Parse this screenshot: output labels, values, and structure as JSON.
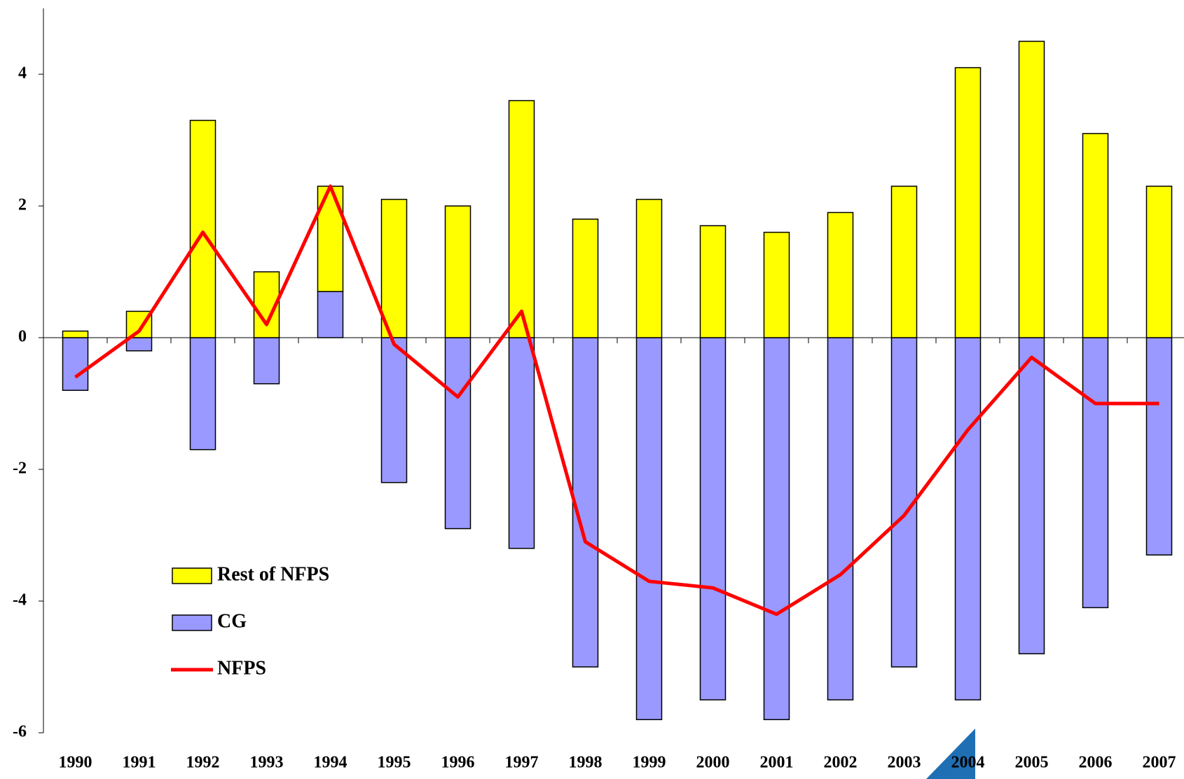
{
  "chart_data": {
    "type": "bar",
    "categories": [
      "1990",
      "1991",
      "1992",
      "1993",
      "1994",
      "1995",
      "1996",
      "1997",
      "1998",
      "1999",
      "2000",
      "2001",
      "2002",
      "2003",
      "2004",
      "2005",
      "2006",
      "2007"
    ],
    "series": [
      {
        "name": "Rest of NFPS",
        "color": "#ffff00",
        "values": [
          0.1,
          0.4,
          3.3,
          1.0,
          1.6,
          2.1,
          2.0,
          3.6,
          1.8,
          2.1,
          1.7,
          1.6,
          1.9,
          2.3,
          4.1,
          4.5,
          3.1,
          2.3
        ]
      },
      {
        "name": "CG",
        "color": "#9999ff",
        "values": [
          -0.8,
          -0.2,
          -1.7,
          -0.7,
          0.7,
          -2.2,
          -2.9,
          -3.2,
          -5.0,
          -5.8,
          -5.5,
          -5.8,
          -5.5,
          -5.0,
          -5.5,
          -4.8,
          -4.1,
          -3.3
        ]
      },
      {
        "name": "NFPS",
        "type": "line",
        "color": "#ff0000",
        "values": [
          -0.6,
          0.1,
          1.6,
          0.2,
          2.3,
          -0.1,
          -0.9,
          0.4,
          -3.1,
          -3.7,
          -3.8,
          -4.2,
          -3.6,
          -2.7,
          -1.4,
          -0.3,
          -1.0,
          -1.0
        ]
      }
    ],
    "ylim": [
      -6,
      5
    ],
    "yticks": [
      -6,
      -4,
      -2,
      0,
      2,
      4
    ],
    "grid": false
  }
}
